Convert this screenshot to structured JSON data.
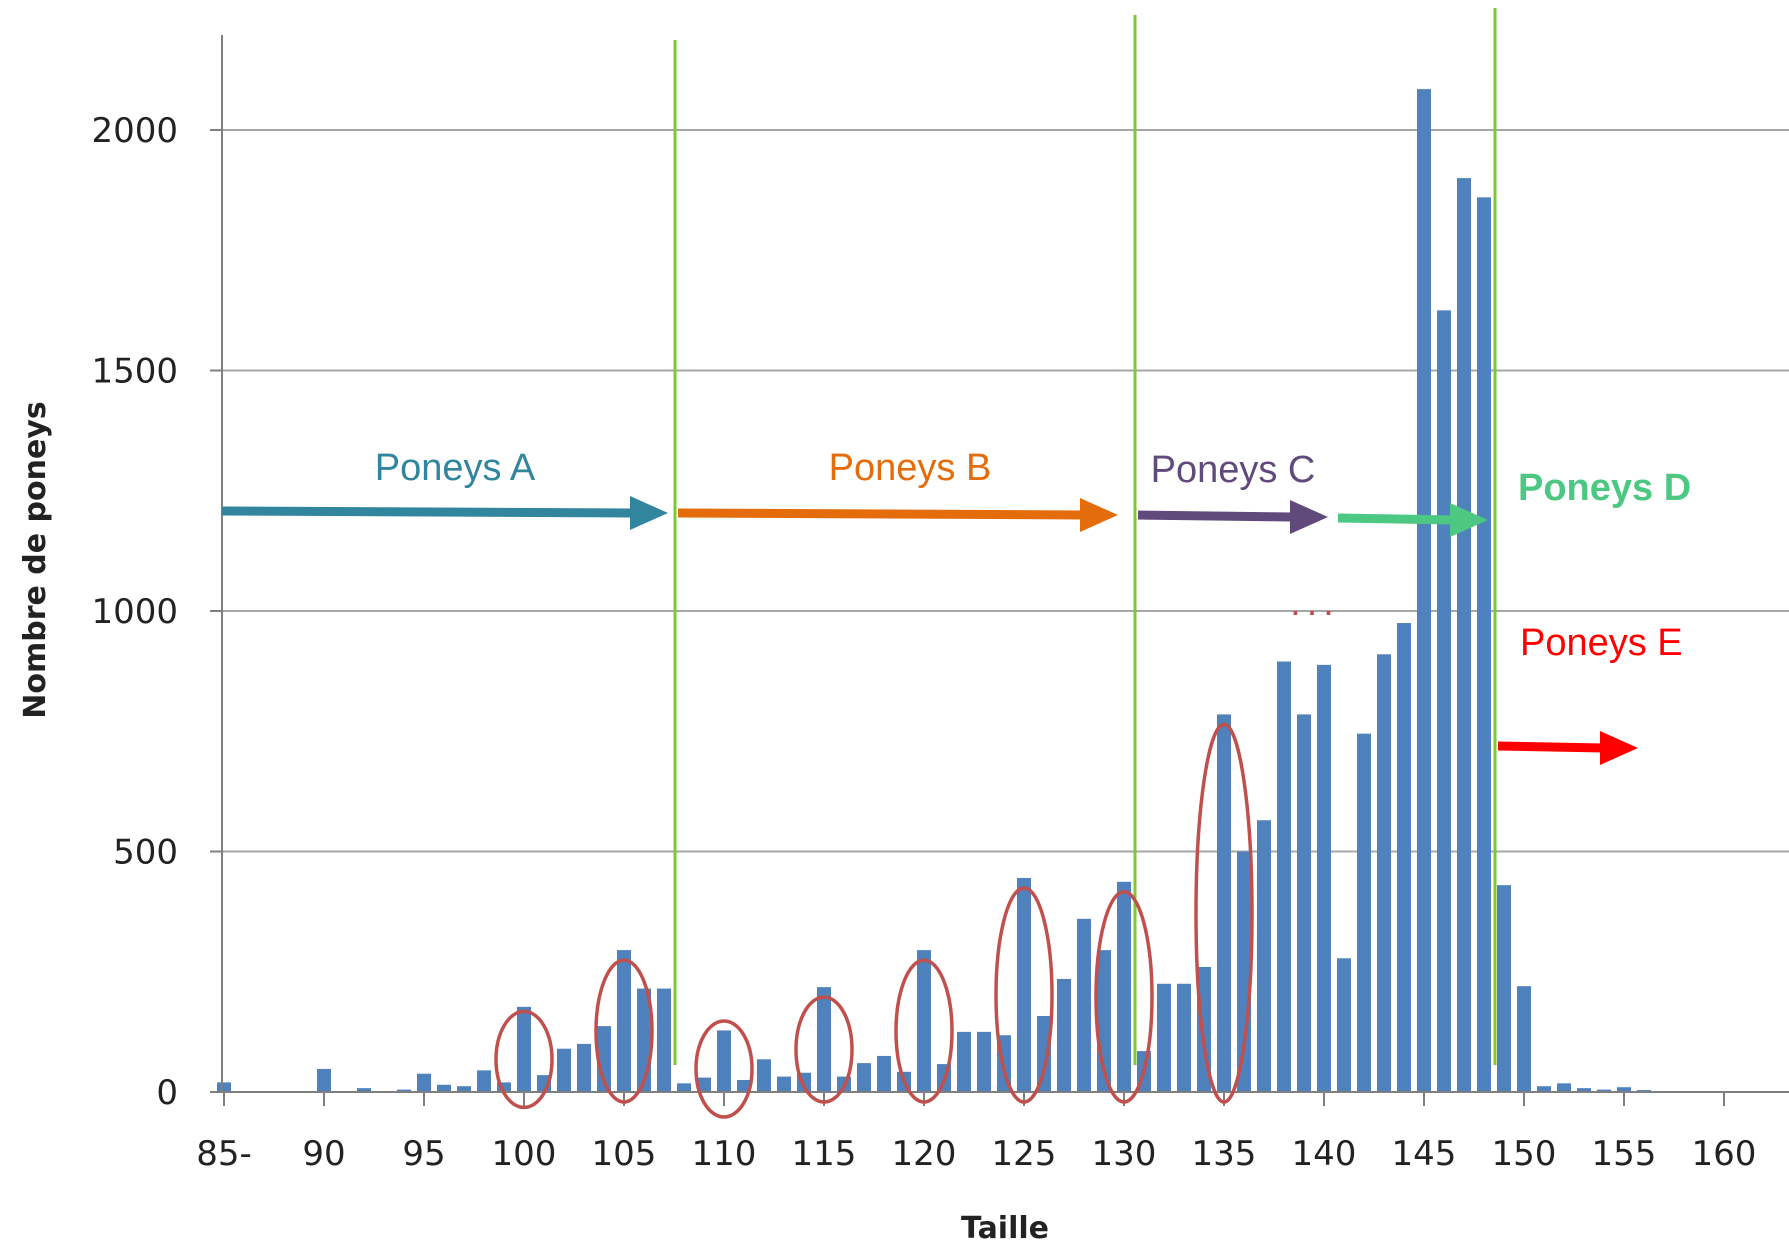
{
  "chart_data": {
    "type": "bar",
    "title": "",
    "xlabel": "Taille",
    "ylabel": "Nombre de poneys",
    "ylim": [
      0,
      2000
    ],
    "yticks": [
      "0",
      "500",
      "1000",
      "1500",
      "2000"
    ],
    "x_tick_labels": [
      {
        "x": 85,
        "label": "85-"
      },
      {
        "x": 90,
        "label": "90"
      },
      {
        "x": 95,
        "label": "95"
      },
      {
        "x": 100,
        "label": "100"
      },
      {
        "x": 105,
        "label": "105"
      },
      {
        "x": 110,
        "label": "110"
      },
      {
        "x": 115,
        "label": "115"
      },
      {
        "x": 120,
        "label": "120"
      },
      {
        "x": 125,
        "label": "125"
      },
      {
        "x": 130,
        "label": "130"
      },
      {
        "x": 135,
        "label": "135"
      },
      {
        "x": 140,
        "label": "140"
      },
      {
        "x": 145,
        "label": "145"
      },
      {
        "x": 150,
        "label": "150"
      },
      {
        "x": 155,
        "label": "155"
      },
      {
        "x": 160,
        "label": "160"
      }
    ],
    "bar_color": "#4f81bd",
    "grid": true,
    "x": [
      85,
      86,
      87,
      88,
      89,
      90,
      91,
      92,
      93,
      94,
      95,
      96,
      97,
      98,
      99,
      100,
      101,
      102,
      103,
      104,
      105,
      106,
      107,
      108,
      109,
      110,
      111,
      112,
      113,
      114,
      115,
      116,
      117,
      118,
      119,
      120,
      121,
      122,
      123,
      124,
      125,
      126,
      127,
      128,
      129,
      130,
      131,
      132,
      133,
      134,
      135,
      136,
      137,
      138,
      139,
      140,
      141,
      142,
      143,
      144,
      145,
      146,
      147,
      148,
      149,
      150,
      151,
      152,
      153,
      154,
      155,
      156,
      157,
      158,
      159,
      160
    ],
    "values": [
      20,
      0,
      0,
      0,
      0,
      48,
      0,
      8,
      0,
      5,
      38,
      15,
      12,
      45,
      20,
      177,
      35,
      90,
      100,
      137,
      295,
      215,
      215,
      18,
      30,
      128,
      25,
      68,
      32,
      40,
      218,
      32,
      60,
      75,
      42,
      295,
      58,
      125,
      125,
      118,
      445,
      158,
      235,
      360,
      295,
      437,
      85,
      225,
      225,
      260,
      785,
      500,
      565,
      895,
      785,
      888,
      278,
      745,
      910,
      975,
      2085,
      1625,
      1900,
      1860,
      430,
      220,
      12,
      18,
      8,
      5,
      10,
      4,
      2,
      0,
      0,
      0
    ],
    "category_lines": [
      107.5,
      130.5,
      148.5
    ],
    "category_line_color": "#7ec832",
    "highlighted_bars": [
      100,
      105,
      110,
      115,
      120,
      125,
      130,
      135
    ],
    "highlight_color": "#c0504d",
    "annotations": [
      {
        "text": "Poneys A",
        "color": "#31859c",
        "arrow_from": 85,
        "arrow_to": 107.5
      },
      {
        "text": "Poneys B",
        "color": "#e46c0a",
        "arrow_from": 107.5,
        "arrow_to": 130
      },
      {
        "text": "Poneys C",
        "color": "#604a7b",
        "arrow_from": 130.5,
        "arrow_to": 140.5
      },
      {
        "text": "Poneys D",
        "color": "#4cc882",
        "arrow_from": 140.5,
        "arrow_to": 148.5
      },
      {
        "text": "Poneys E",
        "color": "#ff0000",
        "arrow_from": 148.5,
        "arrow_to": 156
      },
      {
        "text": "...",
        "color": "#c0504d"
      }
    ]
  }
}
